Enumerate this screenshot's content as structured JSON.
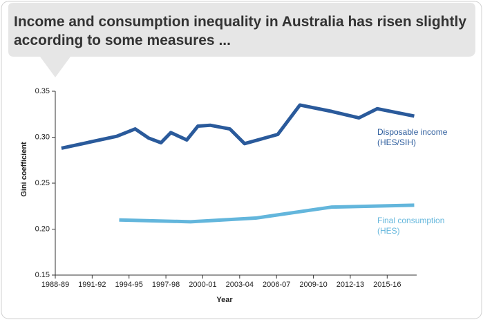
{
  "chart_data": {
    "type": "line",
    "title": "Income and consumption inequality in Australia has risen slightly according to some measures ...",
    "xlabel": "Year",
    "ylabel": "Gini coefficient",
    "xlim": [
      1988,
      2017.4
    ],
    "ylim": [
      0.15,
      0.35
    ],
    "xticks": [
      {
        "value": 1988,
        "label": "1988-89"
      },
      {
        "value": 1991,
        "label": "1991-92"
      },
      {
        "value": 1994,
        "label": "1994-95"
      },
      {
        "value": 1997,
        "label": "1997-98"
      },
      {
        "value": 2000,
        "label": "2000-01"
      },
      {
        "value": 2003,
        "label": "2003-04"
      },
      {
        "value": 2006,
        "label": "2006-07"
      },
      {
        "value": 2009,
        "label": "2009-10"
      },
      {
        "value": 2012,
        "label": "2012-13"
      },
      {
        "value": 2015,
        "label": "2015-16"
      }
    ],
    "yticks": [
      0.15,
      {
        "value": 0.2,
        "label": "0.20"
      },
      0.25,
      {
        "value": 0.3,
        "label": "0.30"
      },
      0.35
    ],
    "series": [
      {
        "name": "Disposable income (HES/SIH)",
        "color": "#2a5a9b",
        "x": [
          1988.5,
          1993.0,
          1994.5,
          1995.6,
          1996.6,
          1997.4,
          1998.7,
          1999.6,
          2000.6,
          2002.2,
          2003.4,
          2006.1,
          2007.9,
          2010.5,
          2012.7,
          2014.2,
          2017.2
        ],
        "values": [
          0.288,
          0.301,
          0.309,
          0.299,
          0.294,
          0.305,
          0.297,
          0.312,
          0.313,
          0.309,
          0.293,
          0.303,
          0.335,
          0.328,
          0.321,
          0.331,
          0.323
        ]
      },
      {
        "name": "Final consumption (HES)",
        "color": "#63b6dc",
        "x": [
          1993.2,
          1999.0,
          2004.3,
          2010.5,
          2017.2
        ],
        "values": [
          0.21,
          0.208,
          0.212,
          0.224,
          0.226
        ]
      }
    ]
  }
}
